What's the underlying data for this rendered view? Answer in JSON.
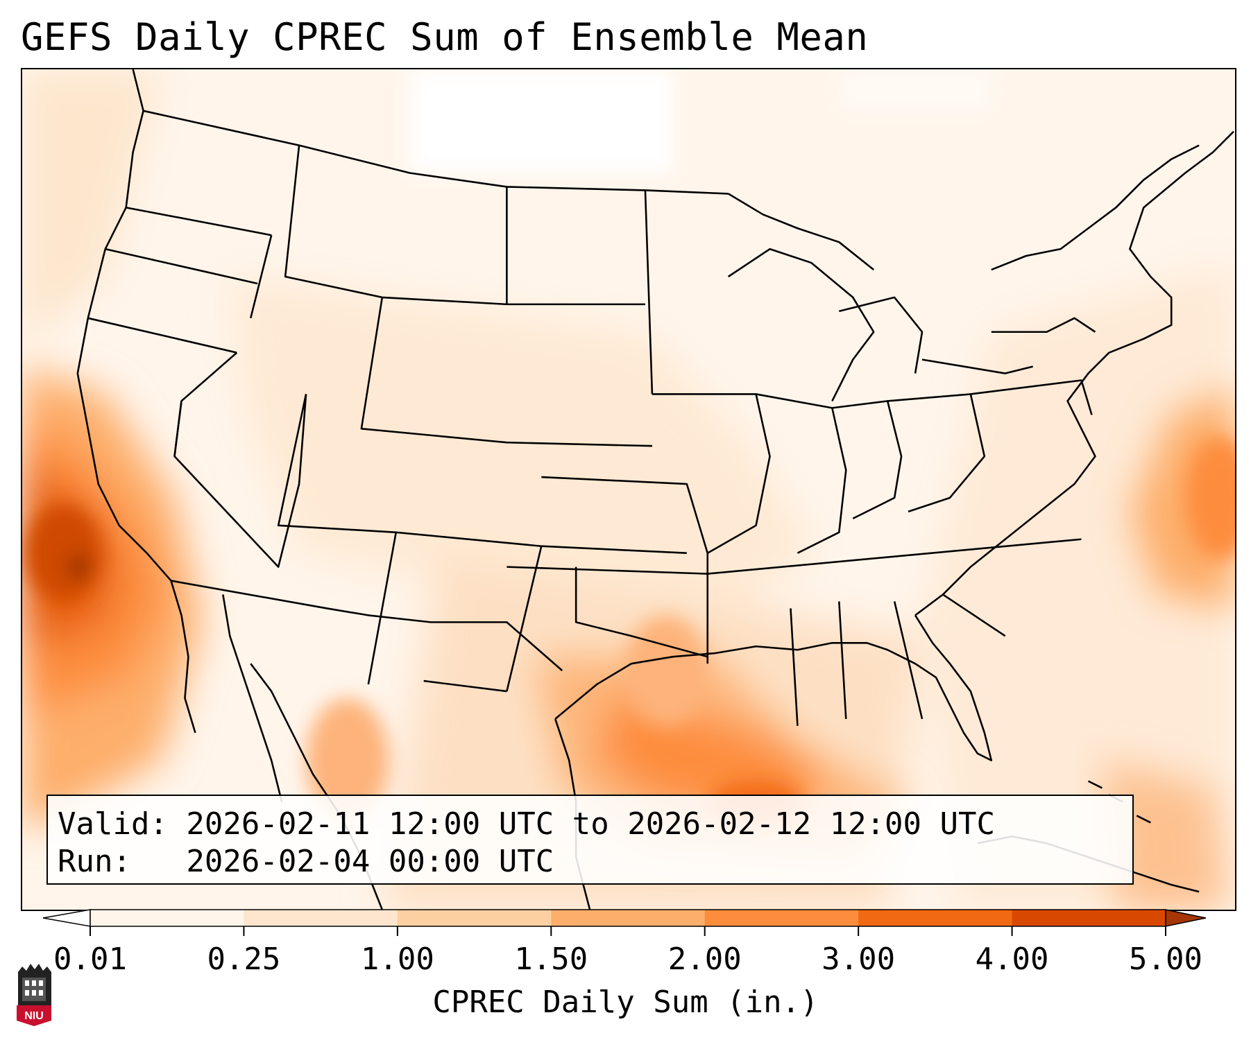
{
  "title": "GEFS Daily CPREC Sum of Ensemble Mean",
  "info": {
    "valid_line": "Valid: 2026-02-11 12:00 UTC to 2026-02-12 12:00 UTC",
    "run_line": "Run:   2026-02-04 00:00 UTC"
  },
  "colorbar": {
    "label": "CPREC Daily Sum (in.)",
    "ticks": [
      "0.01",
      "0.25",
      "1.00",
      "1.50",
      "2.00",
      "3.00",
      "4.00",
      "5.00"
    ],
    "colors": [
      "#fff5eb",
      "#fee6ce",
      "#fdd0a2",
      "#fdae6b",
      "#fd8d3c",
      "#f16913",
      "#d94801",
      "#a63603"
    ]
  },
  "logo": {
    "text": "NIU",
    "color": "#c8102e"
  }
}
